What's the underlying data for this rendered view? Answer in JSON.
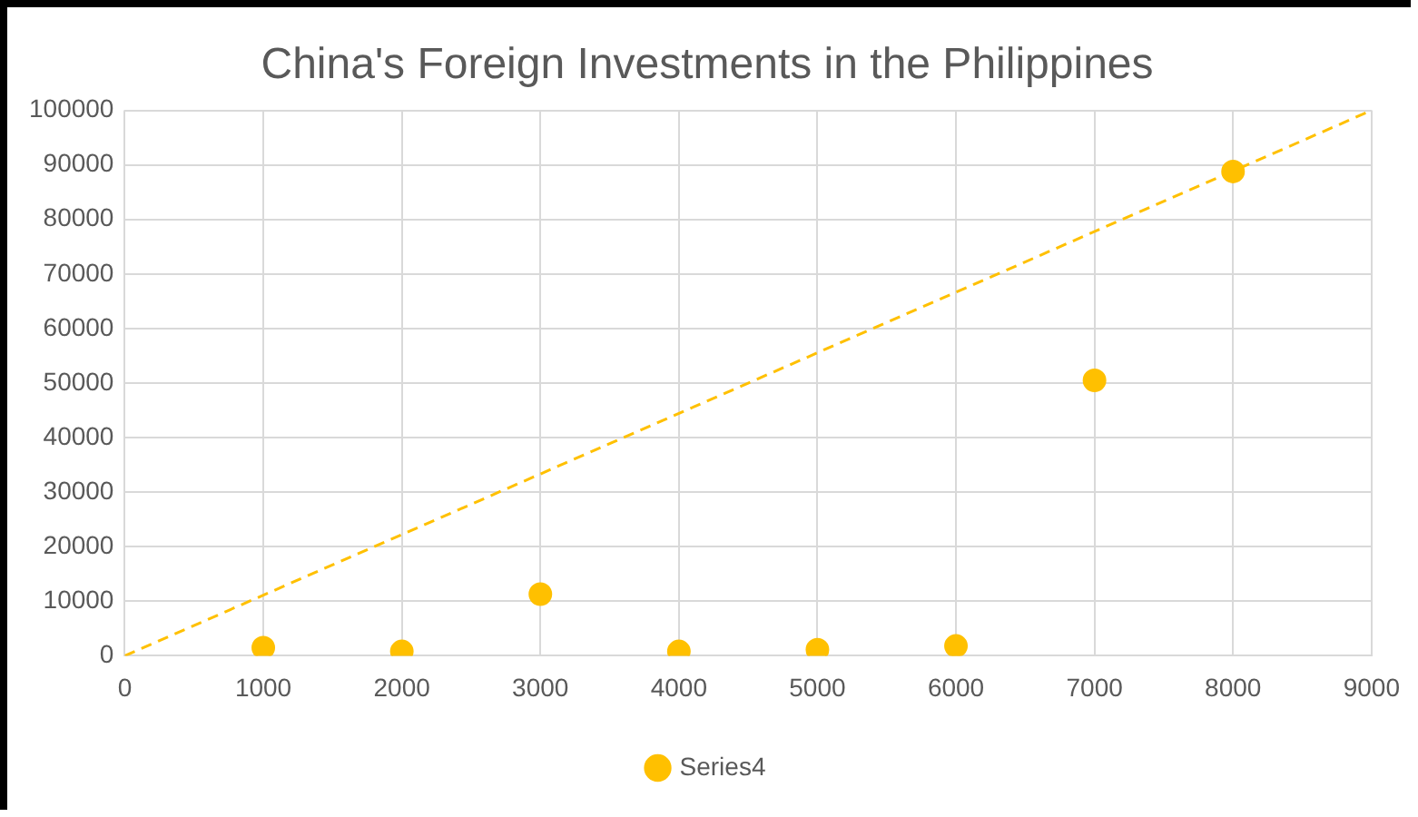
{
  "chart_data": {
    "type": "scatter",
    "title": "China's Foreign Investments in the Philippines",
    "xlim": [
      0,
      9000
    ],
    "xticks": [
      0,
      1000,
      2000,
      3000,
      4000,
      5000,
      6000,
      7000,
      8000,
      9000
    ],
    "ylim": [
      0,
      100000
    ],
    "yticks": [
      0,
      10000,
      20000,
      30000,
      40000,
      50000,
      60000,
      70000,
      80000,
      90000,
      100000
    ],
    "grid": true,
    "legend": "bottom",
    "series": [
      {
        "name": "Series4",
        "type": "scatter",
        "marker": "circle",
        "color": "#ffc000",
        "x": [
          1000,
          2000,
          3000,
          4000,
          5000,
          6000,
          7000,
          8000
        ],
        "values": [
          1500,
          800,
          11300,
          800,
          1100,
          1800,
          50500,
          88800
        ]
      },
      {
        "type": "line",
        "color": "#ffc000",
        "line_style": "dashed",
        "x": [
          0,
          9000
        ],
        "values": [
          0,
          100000
        ]
      }
    ]
  }
}
